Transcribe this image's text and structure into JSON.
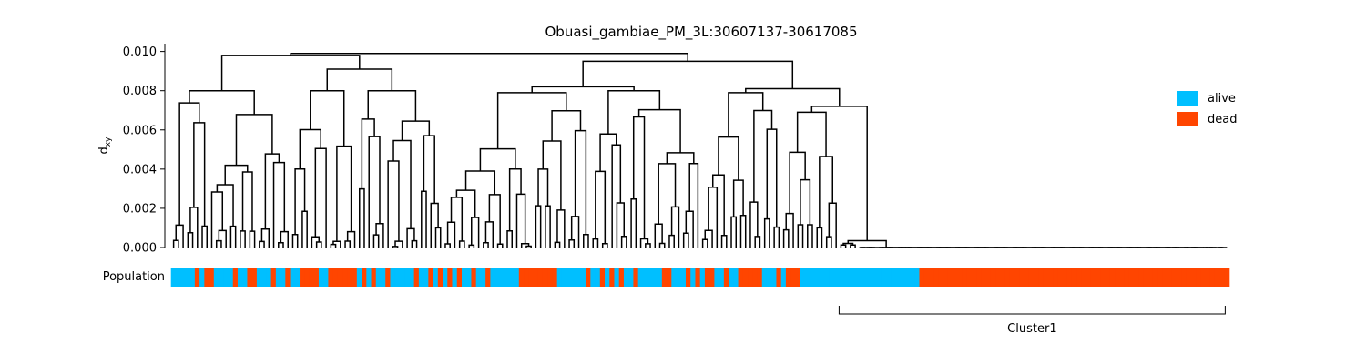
{
  "chart_data": {
    "type": "dendrogram",
    "title": "Obuasi_gambiae_PM_3L:30607137-30617085",
    "ylabel_main": "d",
    "ylabel_sub": "xy",
    "ylim": [
      0,
      0.0104
    ],
    "yticks": [
      "0.000",
      "0.002",
      "0.004",
      "0.006",
      "0.008",
      "0.010"
    ],
    "population_label": "Population",
    "legend": [
      {
        "label": "alive",
        "color": "#00bfff"
      },
      {
        "label": "dead",
        "color": "#ff4500"
      }
    ],
    "population_bar": [
      "alive",
      "alive",
      "alive",
      "alive",
      "alive",
      "dead",
      "alive",
      "dead",
      "dead",
      "alive",
      "alive",
      "alive",
      "alive",
      "dead",
      "alive",
      "alive",
      "dead",
      "dead",
      "alive",
      "alive",
      "alive",
      "dead",
      "alive",
      "alive",
      "dead",
      "alive",
      "alive",
      "dead",
      "dead",
      "dead",
      "dead",
      "alive",
      "alive",
      "dead",
      "dead",
      "dead",
      "dead",
      "dead",
      "dead",
      "alive",
      "dead",
      "alive",
      "dead",
      "alive",
      "alive",
      "dead",
      "alive",
      "alive",
      "alive",
      "alive",
      "alive",
      "dead",
      "alive",
      "alive",
      "dead",
      "alive",
      "dead",
      "alive",
      "dead",
      "alive",
      "dead",
      "alive",
      "alive",
      "dead",
      "alive",
      "alive",
      "dead",
      "alive",
      "alive",
      "alive",
      "alive",
      "alive",
      "alive",
      "dead",
      "dead",
      "dead",
      "dead",
      "dead",
      "dead",
      "dead",
      "dead",
      "alive",
      "alive",
      "alive",
      "alive",
      "alive",
      "alive",
      "dead",
      "alive",
      "alive",
      "dead",
      "alive",
      "dead",
      "alive",
      "dead",
      "alive",
      "alive",
      "dead",
      "alive",
      "alive",
      "alive",
      "alive",
      "alive",
      "dead",
      "dead",
      "alive",
      "alive",
      "alive",
      "dead",
      "alive",
      "dead",
      "alive",
      "dead",
      "dead",
      "alive",
      "alive",
      "dead",
      "alive",
      "alive",
      "dead",
      "dead",
      "dead",
      "dead",
      "dead",
      "alive",
      "alive",
      "alive",
      "dead",
      "alive",
      "dead",
      "dead",
      "dead",
      "alive",
      "alive",
      "alive",
      "alive",
      "alive",
      "alive",
      "alive",
      "alive",
      "alive",
      "alive",
      "alive",
      "alive",
      "alive",
      "alive",
      "alive",
      "alive",
      "alive",
      "alive",
      "alive",
      "alive",
      "alive",
      "alive",
      "alive",
      "alive",
      "alive",
      "dead",
      "dead",
      "dead",
      "dead",
      "dead",
      "dead",
      "dead",
      "dead",
      "dead",
      "dead",
      "dead",
      "dead",
      "dead",
      "dead",
      "dead",
      "dead",
      "dead",
      "dead",
      "dead",
      "dead",
      "dead",
      "dead",
      "dead",
      "dead",
      "dead",
      "dead",
      "dead",
      "dead",
      "dead",
      "dead",
      "dead",
      "dead",
      "dead",
      "dead",
      "dead",
      "dead",
      "dead",
      "dead",
      "dead",
      "dead",
      "dead",
      "dead",
      "dead",
      "dead",
      "dead",
      "dead",
      "dead",
      "dead",
      "dead",
      "dead",
      "dead",
      "dead",
      "dead",
      "dead",
      "dead",
      "dead",
      "dead",
      "dead",
      "dead",
      "dead",
      "dead",
      "dead",
      "dead",
      "dead",
      "dead"
    ],
    "cluster": {
      "label": "Cluster1",
      "start_leaf": 140,
      "end_leaf": 221
    },
    "leaf_count": 222
  }
}
